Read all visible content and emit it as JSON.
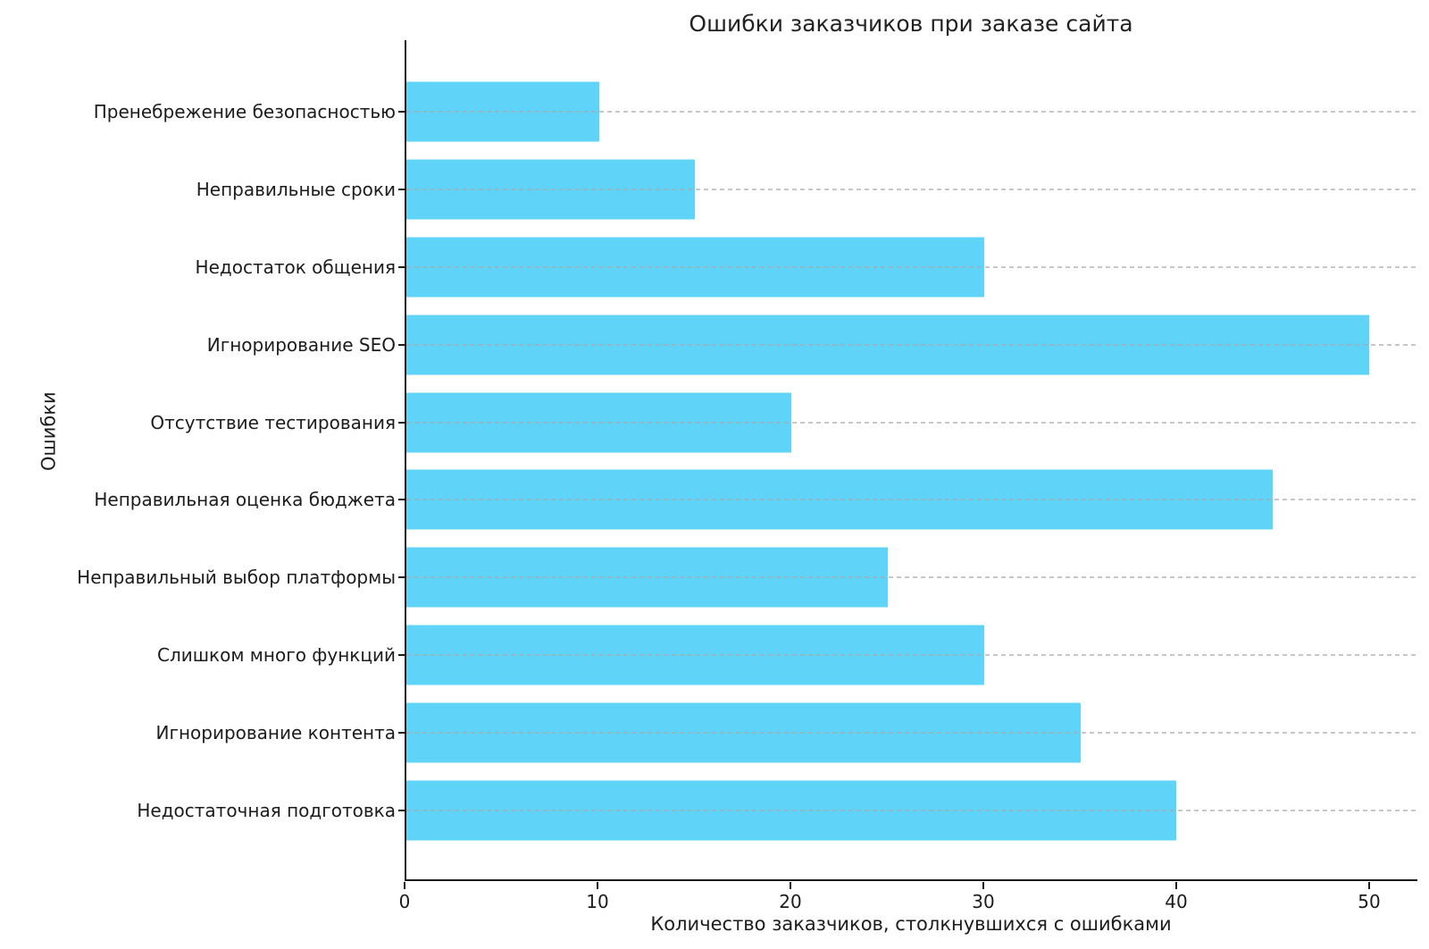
{
  "chart_data": {
    "type": "bar",
    "orientation": "horizontal",
    "title": "Ошибки заказчиков при заказе сайта",
    "xlabel": "Количество заказчиков, столкнувшихся с ошибками",
    "ylabel": "Ошибки",
    "categories": [
      "Пренебрежение безопасностью",
      "Неправильные сроки",
      "Недостаток общения",
      "Игнорирование SEO",
      "Отсутствие тестирования",
      "Неправильная оценка бюджета",
      "Неправильный выбор платформы",
      "Слишком много функций",
      "Игнорирование контента",
      "Недостаточная подготовка"
    ],
    "values": [
      10,
      15,
      30,
      50,
      20,
      45,
      25,
      30,
      35,
      40
    ],
    "x_ticks": [
      0,
      10,
      20,
      30,
      40,
      50
    ],
    "xlim": [
      0,
      50
    ],
    "xmax_display": 52.5,
    "grid": "horizontal dashed gridlines drawn over bars",
    "legend": "none",
    "bar_color": "#5fd3f8",
    "grid_color": "#a9a9a9",
    "text_color": "#1c1c1c",
    "background_color": "#ffffff"
  }
}
